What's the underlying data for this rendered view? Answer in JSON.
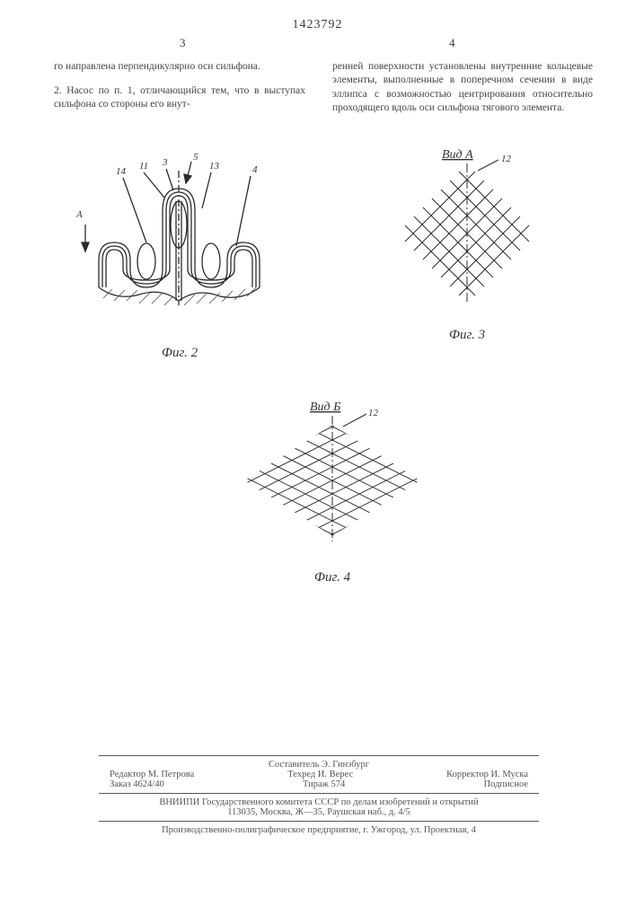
{
  "patent_number": "1423792",
  "col_left_num": "3",
  "col_right_num": "4",
  "text_left": {
    "p1": "го направлена перпендикулярно оси сильфона.",
    "p2": "2. Насос по п. 1, отличающийся тем, что в выступах сильфона со стороны его внут-"
  },
  "text_right": {
    "p1": "ренней поверхности установлены внутренние кольцевые элементы, выполненные в поперечном сечении в виде эллипса с возможностью центрирования относительно проходящего вдоль оси сильфона тягового элемента."
  },
  "fig2": {
    "caption": "Фиг. 2",
    "labels": {
      "l14": "14",
      "l11": "11",
      "l3": "3",
      "l5": "5",
      "l13": "13",
      "l4": "4",
      "lA": "А"
    },
    "stroke": "#2b2b2b",
    "fill_none": "none",
    "hatch_stroke": "#4a4a4a"
  },
  "fig3": {
    "caption": "Фиг. 3",
    "view_label": "Вид А",
    "ref_label": "12",
    "grid_stroke": "#2b2b2b",
    "axis_stroke": "#2b2b2b",
    "grid_lines_a": [
      -80,
      -60,
      -40,
      -20,
      0,
      20,
      40,
      60,
      80
    ],
    "grid_lines_b": [
      -80,
      -60,
      -40,
      -20,
      0,
      20,
      40,
      60,
      80
    ]
  },
  "fig4": {
    "caption": "Фиг. 4",
    "view_label": "Вид Б",
    "ref_label": "12",
    "grid_stroke": "#2b2b2b",
    "axis_stroke": "#2b2b2b"
  },
  "footer": {
    "compiler": "Составитель Э. Гинзбург",
    "editor": "Редактор М. Петрова",
    "techred": "Техред И. Верес",
    "corrector": "Корректор И. Муска",
    "order": "Заказ 4624/40",
    "tiraj": "Тираж 574",
    "sub": "Подписное",
    "org": "ВНИИПИ Государственного комитета СССР по делам изобретений и открытий",
    "address1": "113035, Москва, Ж—35, Раушская наб., д. 4/5",
    "address2": "Производственно-полиграфическое предприятие, г. Ужгород, ул. Проектная, 4"
  }
}
